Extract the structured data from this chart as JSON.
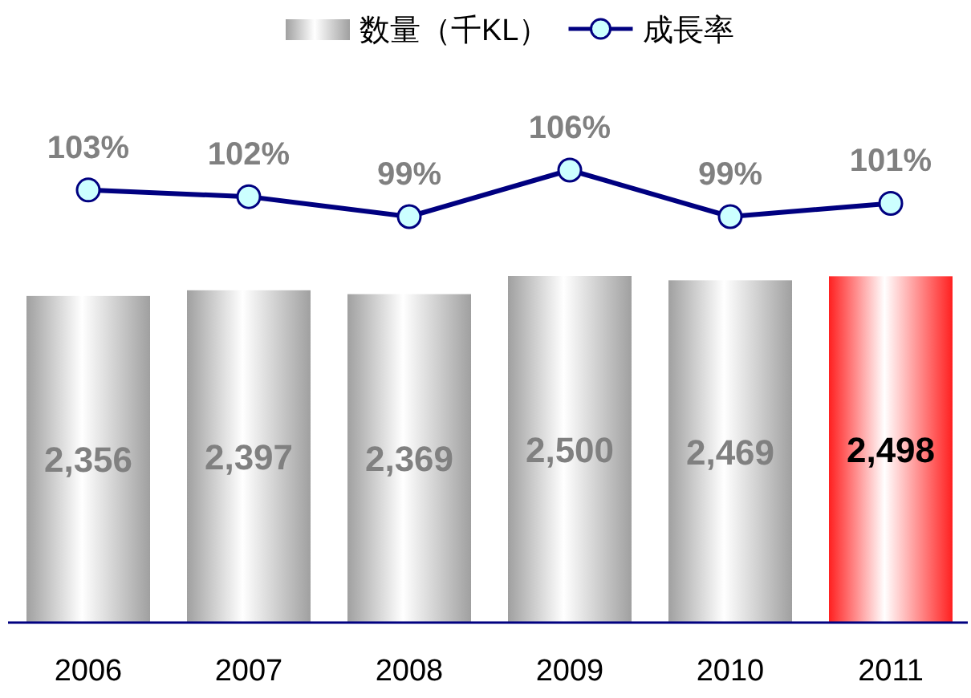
{
  "chart_data": [
    {
      "type": "bar",
      "categories": [
        "2006",
        "2007",
        "2008",
        "2009",
        "2010",
        "2011"
      ],
      "legend": "top",
      "data_labels": true,
      "series": [
        {
          "name": "数量（千KL）",
          "values": [
            2356,
            2397,
            2369,
            2500,
            2469,
            2498
          ],
          "value_labels": [
            "2,356",
            "2,397",
            "2,369",
            "2,500",
            "2,469",
            "2,498"
          ],
          "colors": [
            "#a0a0a0",
            "#a0a0a0",
            "#a0a0a0",
            "#a0a0a0",
            "#a0a0a0",
            "#ff2020"
          ]
        }
      ]
    },
    {
      "type": "line",
      "categories": [
        null,
        null,
        null,
        null,
        null,
        null
      ],
      "legend": "top",
      "data_labels": true,
      "marker": "circle",
      "series": [
        {
          "name": "成長率",
          "color": "#000080",
          "values": [
            103,
            102,
            99,
            106,
            99,
            101
          ],
          "value_labels": [
            "103%",
            "102%",
            "99%",
            "106%",
            "99%",
            "101%"
          ]
        }
      ]
    }
  ]
}
